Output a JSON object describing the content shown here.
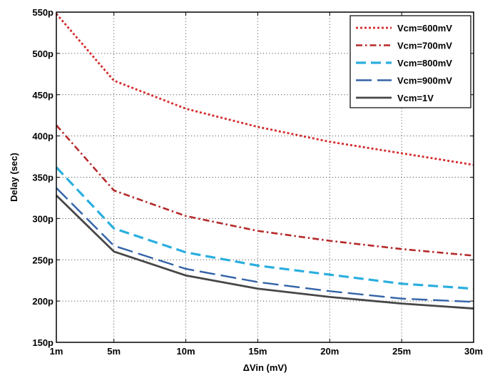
{
  "chart_data": {
    "type": "line",
    "title": "",
    "xlabel": "ΔVin (mV)",
    "ylabel": "Delay (sec)",
    "x": [
      1,
      5,
      10,
      15,
      20,
      25,
      30
    ],
    "x_tick_values": [
      1,
      5,
      10,
      15,
      20,
      25,
      30
    ],
    "x_tick_labels": [
      "1m",
      "5m",
      "10m",
      "15m",
      "20m",
      "25m",
      "30m"
    ],
    "y_unit": "ps",
    "y_tick_values": [
      150,
      200,
      250,
      300,
      350,
      400,
      450,
      500,
      550
    ],
    "y_tick_labels": [
      "150p",
      "200p",
      "250p",
      "300p",
      "350p",
      "400p",
      "450p",
      "500p",
      "550p"
    ],
    "xlim": [
      1,
      30
    ],
    "ylim": [
      150,
      550
    ],
    "grid": true,
    "legend_position": "top-right",
    "series": [
      {
        "name": "Vcm=600mV",
        "color": "#d42b2b",
        "style": "dotted",
        "values": [
          548,
          467,
          433,
          411,
          393,
          379,
          365
        ]
      },
      {
        "name": "Vcm=700mV",
        "color": "#b5292a",
        "style": "dashdot",
        "values": [
          413,
          334,
          303,
          285,
          273,
          263,
          255
        ]
      },
      {
        "name": "Vcm=800mV",
        "color": "#2aaedf",
        "style": "dashed",
        "values": [
          362,
          288,
          259,
          243,
          232,
          221,
          215
        ]
      },
      {
        "name": "Vcm=900mV",
        "color": "#3363a8",
        "style": "longdash",
        "values": [
          337,
          267,
          239,
          223,
          212,
          203,
          199
        ]
      },
      {
        "name": "Vcm=1V",
        "color": "#474747",
        "style": "solid",
        "values": [
          328,
          260,
          231,
          215,
          205,
          197,
          191
        ]
      }
    ]
  }
}
